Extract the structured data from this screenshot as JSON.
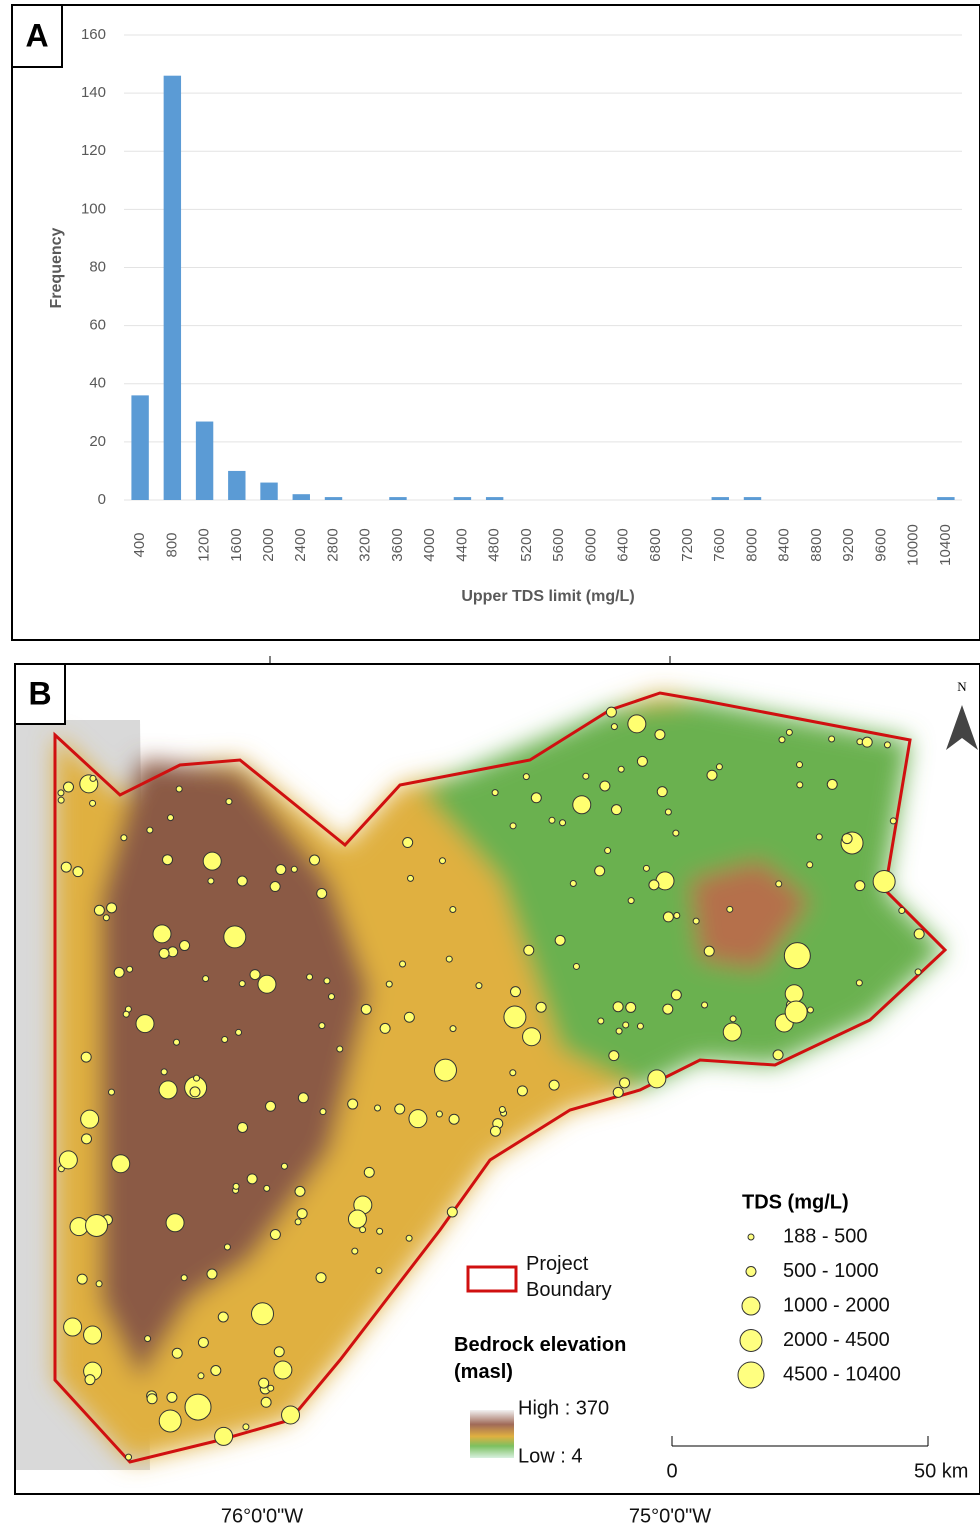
{
  "chart_data": {
    "type": "bar",
    "panel_label": "A",
    "x_label": "Upper TDS limit (mg/L)",
    "y_label": "Frequency",
    "categories": [
      400,
      800,
      1200,
      1600,
      2000,
      2400,
      2800,
      3200,
      3600,
      4000,
      4400,
      4800,
      5200,
      5600,
      6000,
      6400,
      6800,
      7200,
      7600,
      8000,
      8400,
      8800,
      9200,
      9600,
      10000,
      10400
    ],
    "values": [
      36,
      146,
      27,
      10,
      6,
      2,
      1,
      0,
      1,
      0,
      1,
      1,
      0,
      0,
      0,
      0,
      0,
      0,
      1,
      1,
      0,
      0,
      0,
      0,
      0,
      1
    ],
    "color": "#5b9bd5",
    "ylim": [
      0,
      160
    ],
    "yticks": [
      0,
      20,
      40,
      60,
      80,
      100,
      120,
      140,
      160
    ],
    "grid": true
  },
  "map": {
    "panel_label": "B",
    "north": "N",
    "longitudes": [
      "76°0'0\"W",
      "75°0'0\"W"
    ],
    "boundary_legend": "Project Boundary",
    "elevation_legend": {
      "title": "Bedrock elevation (masl)",
      "high": "High : 370",
      "low": "Low : 4"
    },
    "tds_legend": {
      "title": "TDS (mg/L)",
      "classes": [
        "188 - 500",
        "500 - 1000",
        "1000 - 2000",
        "2000 - 4500",
        "4500 - 10400"
      ]
    },
    "scale_bar": {
      "start": "0",
      "end": "50 km"
    }
  }
}
